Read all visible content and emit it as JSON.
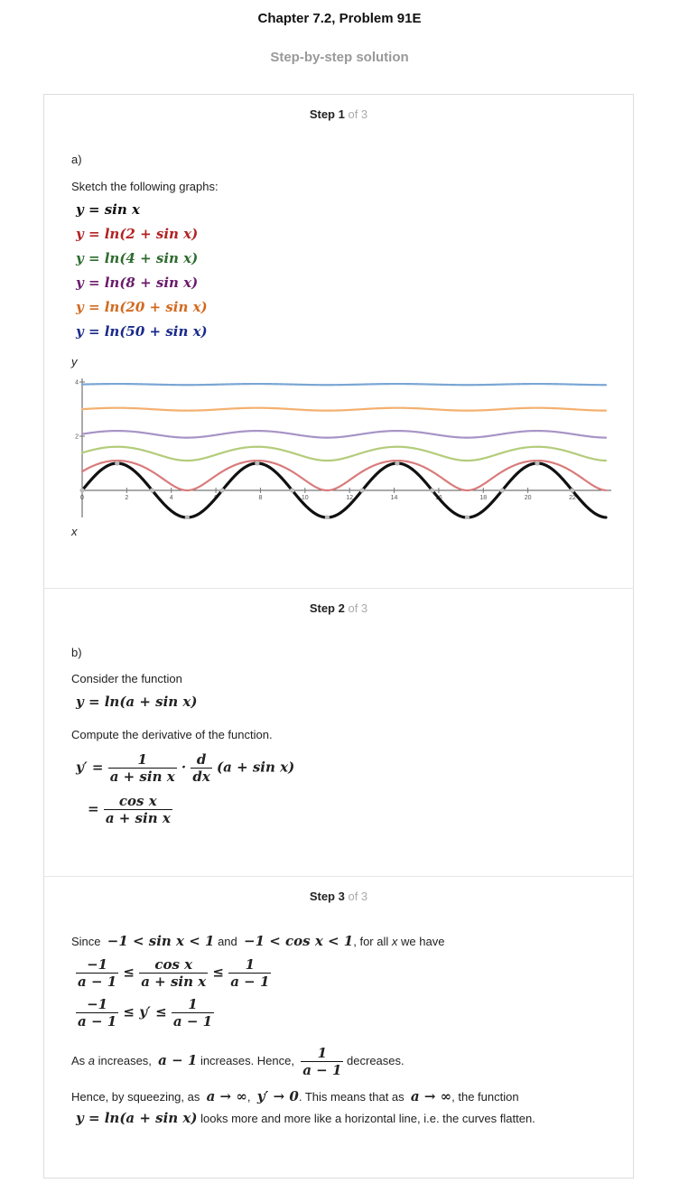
{
  "header": {
    "title": "Chapter 7.2, Problem 91E",
    "subtitle": "Step-by-step solution"
  },
  "colors": {
    "eq_sin": "#111111",
    "eq_ln2": "#b22222",
    "eq_ln4": "#2e6b2e",
    "eq_ln8": "#6a1b6a",
    "eq_ln20": "#d2691e",
    "eq_ln50": "#1a2a8a"
  },
  "step1": {
    "heading": "Step 1",
    "of": "of 3",
    "part": "a)",
    "text": "Sketch the following graphs:",
    "equations": [
      "y = sin x",
      "y = ln(2 + sin x)",
      "y = ln(4 + sin x)",
      "y = ln(8 + sin x)",
      "y = ln(20 + sin x)",
      "y = ln(50 + sin x)"
    ]
  },
  "chart_data": {
    "type": "line",
    "title": "",
    "xlabel": "x",
    "ylabel": "y",
    "xlim": [
      0,
      23.5
    ],
    "ylim": [
      -1,
      4
    ],
    "x_ticks": [
      0,
      2,
      4,
      6,
      8,
      10,
      12,
      14,
      16,
      18,
      20,
      22
    ],
    "y_ticks": [
      2,
      4
    ],
    "series": [
      {
        "name": "y = ln(50 + sin x)",
        "color": "#7aa6d4",
        "function": "ln(50+sin x)"
      },
      {
        "name": "y = ln(20 + sin x)",
        "color": "#f4b06e",
        "function": "ln(20+sin x)"
      },
      {
        "name": "y = ln(8 + sin x)",
        "color": "#a794c6",
        "function": "ln(8+sin x)"
      },
      {
        "name": "y = ln(4 + sin x)",
        "color": "#b3cc7a",
        "function": "ln(4+sin x)"
      },
      {
        "name": "y = ln(2 + sin x)",
        "color": "#d97b7b",
        "function": "ln(2+sin x)"
      },
      {
        "name": "y = sin x",
        "color": "#111111",
        "function": "sin x"
      }
    ]
  },
  "step2": {
    "heading": "Step 2",
    "of": "of 3",
    "part": "b)",
    "text1": "Consider the function",
    "eq1": "y = ln(a + sin x)",
    "text2": "Compute the derivative of the function.",
    "deriv": {
      "lhs": "y′ =",
      "num1": "1",
      "den1": "a + sin x",
      "dot": "·",
      "num2": "d",
      "den2": "dx",
      "tail": "(a + sin x)",
      "eq": "=",
      "num3": "cos x",
      "den3": "a + sin x"
    }
  },
  "step3": {
    "heading": "Step 3",
    "of": "of 3",
    "since": "Since",
    "ineq1": "−1 < sin x < 1",
    "and": "and",
    "ineq2": "−1 < cos x < 1",
    "forall_pre": ", for all",
    "x": "x",
    "forall_post": "we have",
    "f1": {
      "n1": "−1",
      "d1": "a − 1",
      "le": "≤",
      "n2": "cos x",
      "d2": "a + sin x",
      "n3": "1",
      "d3": "a − 1"
    },
    "f2": {
      "n1": "−1",
      "d1": "a − 1",
      "mid": "≤ y′ ≤",
      "n2": "1",
      "d2": "a − 1"
    },
    "as_pre": "As",
    "a": "a",
    "as_mid": "increases,",
    "am1": "a − 1",
    "as_mid2": "increases. Hence,",
    "fr_num": "1",
    "fr_den": "a − 1",
    "as_post": "decreases.",
    "sq_pre": "Hence, by squeezing, as",
    "lim1": "a → ∞",
    "comma": ",",
    "lim2": "y′ → 0",
    "sq_mid": ". This means that as",
    "lim3": "a → ∞",
    "sq_post": ", the function",
    "eq_final": "y = ln(a + sin x)",
    "final_text": "looks more and more like a horizontal line, i.e. the curves flatten."
  }
}
